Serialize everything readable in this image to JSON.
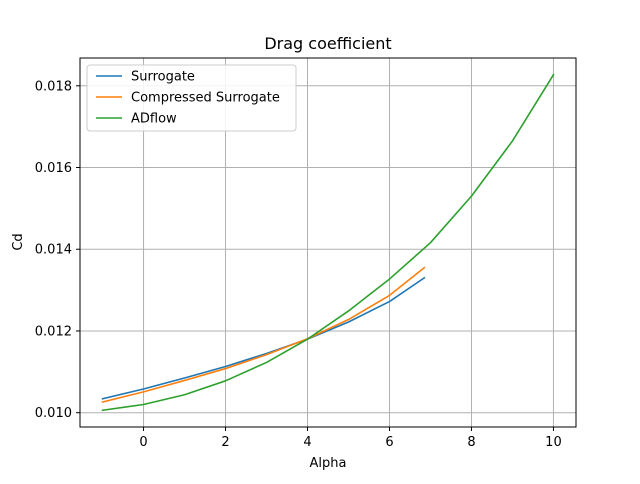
{
  "chart_data": {
    "type": "line",
    "title": "Drag coefficient",
    "xlabel": "Alpha",
    "ylabel": "Cd",
    "xlim": [
      -1.55,
      10.55
    ],
    "ylim": [
      0.00965,
      0.01868
    ],
    "x_ticks": [
      0,
      2,
      4,
      6,
      8,
      10
    ],
    "x_tick_labels": [
      "0",
      "2",
      "4",
      "6",
      "8",
      "10"
    ],
    "y_ticks": [
      0.01,
      0.012,
      0.014,
      0.016,
      0.018
    ],
    "y_tick_labels": [
      "0.010",
      "0.012",
      "0.014",
      "0.016",
      "0.018"
    ],
    "grid": true,
    "legend_position": "top-left",
    "series": [
      {
        "name": "Surrogate",
        "color": "#1f77b4",
        "x": [
          -1,
          0,
          1,
          2,
          3,
          4,
          5,
          6,
          6.85
        ],
        "y": [
          0.01034,
          0.01058,
          0.01085,
          0.01113,
          0.01145,
          0.0118,
          0.01222,
          0.01272,
          0.0133
        ]
      },
      {
        "name": "Compressed Surrogate",
        "color": "#ff7f0e",
        "x": [
          -1,
          0,
          1,
          2,
          3,
          4,
          5,
          6,
          6.85
        ],
        "y": [
          0.01026,
          0.01051,
          0.01079,
          0.01108,
          0.01142,
          0.01181,
          0.01228,
          0.01287,
          0.01355
        ]
      },
      {
        "name": "ADflow",
        "color": "#2ca02c",
        "x": [
          -1,
          0,
          1,
          2,
          3,
          4,
          5,
          6,
          7,
          8,
          9,
          10
        ],
        "y": [
          0.01006,
          0.0102,
          0.01044,
          0.01078,
          0.01123,
          0.0118,
          0.01249,
          0.01327,
          0.01416,
          0.0153,
          0.01665,
          0.01827
        ]
      }
    ]
  }
}
